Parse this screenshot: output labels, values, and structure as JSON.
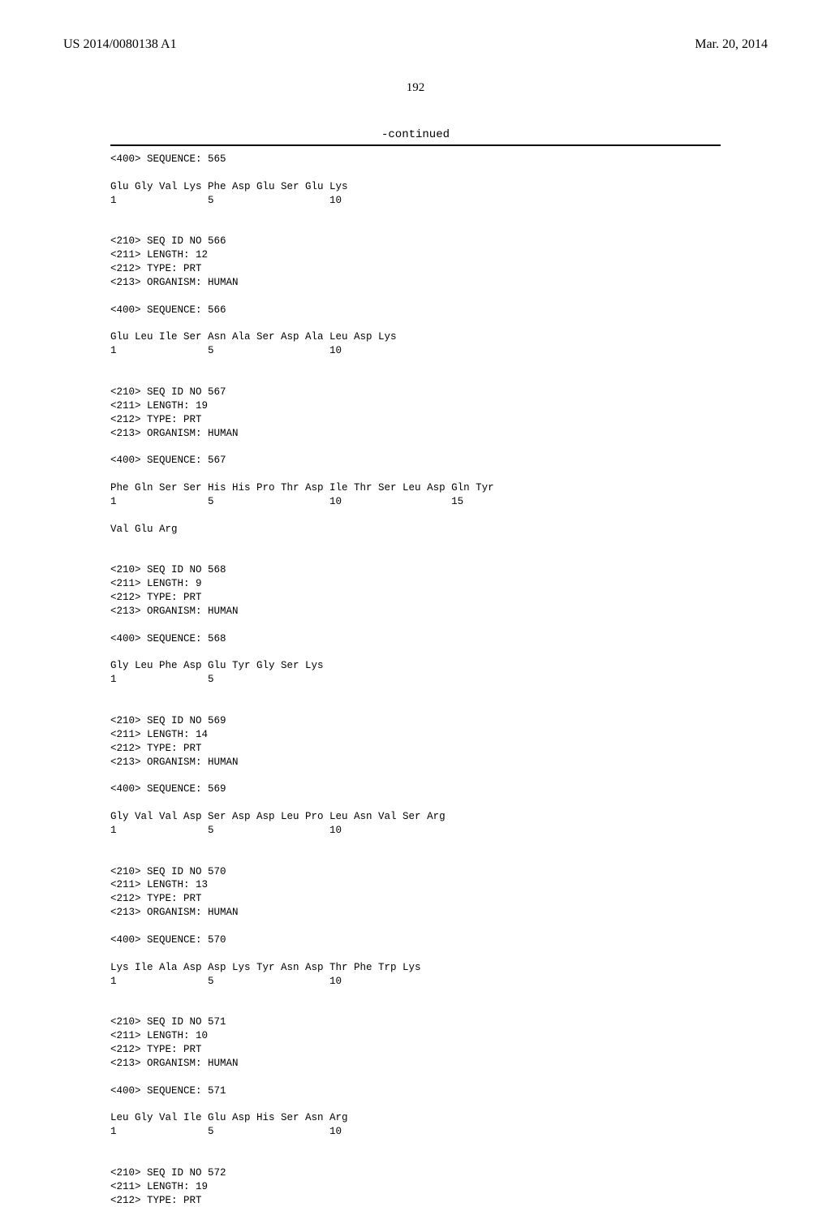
{
  "header": {
    "pub_number": "US 2014/0080138 A1",
    "pub_date": "Mar. 20, 2014"
  },
  "page_number": "192",
  "continued_label": "-continued",
  "sequence_text": "<400> SEQUENCE: 565\n\nGlu Gly Val Lys Phe Asp Glu Ser Glu Lys\n1               5                   10\n\n\n<210> SEQ ID NO 566\n<211> LENGTH: 12\n<212> TYPE: PRT\n<213> ORGANISM: HUMAN\n\n<400> SEQUENCE: 566\n\nGlu Leu Ile Ser Asn Ala Ser Asp Ala Leu Asp Lys\n1               5                   10\n\n\n<210> SEQ ID NO 567\n<211> LENGTH: 19\n<212> TYPE: PRT\n<213> ORGANISM: HUMAN\n\n<400> SEQUENCE: 567\n\nPhe Gln Ser Ser His His Pro Thr Asp Ile Thr Ser Leu Asp Gln Tyr\n1               5                   10                  15\n\nVal Glu Arg\n\n\n<210> SEQ ID NO 568\n<211> LENGTH: 9\n<212> TYPE: PRT\n<213> ORGANISM: HUMAN\n\n<400> SEQUENCE: 568\n\nGly Leu Phe Asp Glu Tyr Gly Ser Lys\n1               5\n\n\n<210> SEQ ID NO 569\n<211> LENGTH: 14\n<212> TYPE: PRT\n<213> ORGANISM: HUMAN\n\n<400> SEQUENCE: 569\n\nGly Val Val Asp Ser Asp Asp Leu Pro Leu Asn Val Ser Arg\n1               5                   10\n\n\n<210> SEQ ID NO 570\n<211> LENGTH: 13\n<212> TYPE: PRT\n<213> ORGANISM: HUMAN\n\n<400> SEQUENCE: 570\n\nLys Ile Ala Asp Asp Lys Tyr Asn Asp Thr Phe Trp Lys\n1               5                   10\n\n\n<210> SEQ ID NO 571\n<211> LENGTH: 10\n<212> TYPE: PRT\n<213> ORGANISM: HUMAN\n\n<400> SEQUENCE: 571\n\nLeu Gly Val Ile Glu Asp His Ser Asn Arg\n1               5                   10\n\n\n<210> SEQ ID NO 572\n<211> LENGTH: 19\n<212> TYPE: PRT"
}
